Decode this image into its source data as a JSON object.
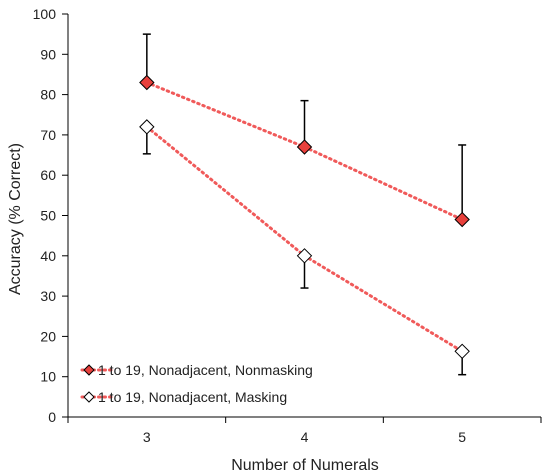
{
  "chart_data": {
    "type": "line",
    "title": "",
    "xlabel": "Number of Numerals",
    "ylabel": "Accuracy (% Correct)",
    "x": [
      3,
      4,
      5
    ],
    "x_tick_labels": [
      "3",
      "4",
      "5"
    ],
    "xlim": [
      2.5,
      5.5
    ],
    "ylim": [
      0,
      100
    ],
    "y_ticks": [
      0,
      10,
      20,
      30,
      40,
      50,
      60,
      70,
      80,
      90,
      100
    ],
    "grid": false,
    "legend_position": "bottom-left",
    "series": [
      {
        "name": "1 to 19, Nonadjacent, Nonmasking",
        "values": [
          83,
          67,
          49
        ],
        "error_upper": [
          95,
          78.5,
          67.5
        ],
        "error_direction": "up",
        "marker": "diamond",
        "marker_fill": "#e8403c",
        "line_style": "dotted",
        "line_color": "#f05a5a"
      },
      {
        "name": "1 to 19, Nonadjacent, Masking",
        "values": [
          72,
          40,
          16.3
        ],
        "error_lower": [
          65.3,
          32,
          10.5
        ],
        "error_direction": "down",
        "marker": "diamond",
        "marker_fill": "#ffffff",
        "line_style": "dotted",
        "line_color": "#f05a5a"
      }
    ]
  }
}
